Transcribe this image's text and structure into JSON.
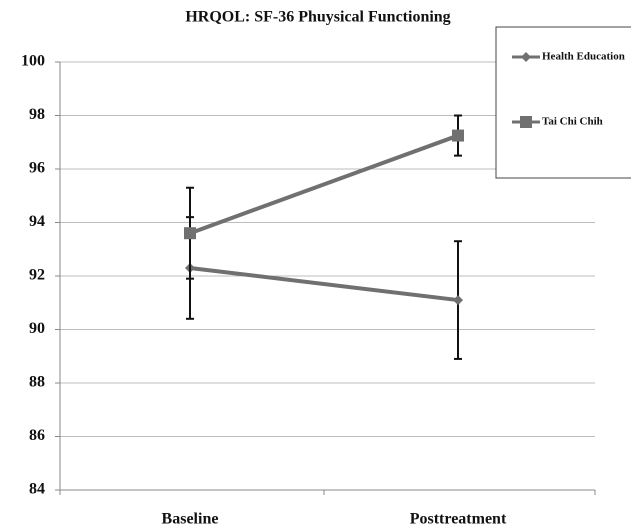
{
  "chart_data": {
    "type": "line",
    "title": "HRQOL: SF-36 Phuysical Functioning",
    "categories": [
      "Baseline",
      "Posttreatment"
    ],
    "series": [
      {
        "name": "Health Education",
        "color": "#707070",
        "marker": "diamond",
        "values": [
          92.3,
          91.1
        ],
        "errors": [
          1.9,
          2.2
        ]
      },
      {
        "name": "Tai Chi Chih",
        "color": "#707070",
        "marker": "square",
        "values": [
          93.6,
          97.25
        ],
        "errors": [
          1.7,
          0.75
        ]
      }
    ],
    "ylim": [
      84,
      100
    ],
    "yticks": [
      84,
      86,
      88,
      90,
      92,
      94,
      96,
      98,
      100
    ],
    "grid": true,
    "legend": "top-right"
  }
}
